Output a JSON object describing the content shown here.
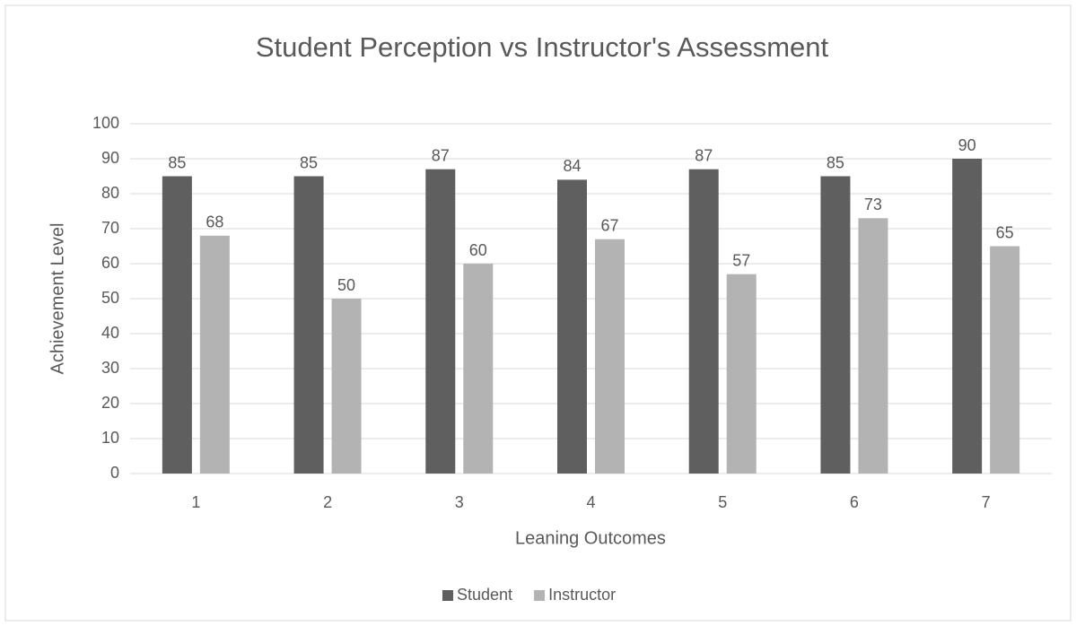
{
  "chart_data": {
    "type": "bar",
    "title": "Student Perception vs Instructor's Assessment",
    "x_label": "Leaning Outcomes",
    "y_label": "Achievement Level",
    "categories": [
      "1",
      "2",
      "3",
      "4",
      "5",
      "6",
      "7"
    ],
    "series": [
      {
        "name": "Student",
        "color": "#5f5f5f",
        "values": [
          85,
          85,
          87,
          84,
          87,
          85,
          90
        ]
      },
      {
        "name": "Instructor",
        "color": "#b3b3b3",
        "values": [
          68,
          50,
          60,
          67,
          57,
          73,
          65
        ]
      }
    ],
    "ylim": [
      0,
      100
    ],
    "yticks": [
      0,
      10,
      20,
      30,
      40,
      50,
      60,
      70,
      80,
      90,
      100
    ],
    "grid": true,
    "legend": "bottom"
  }
}
